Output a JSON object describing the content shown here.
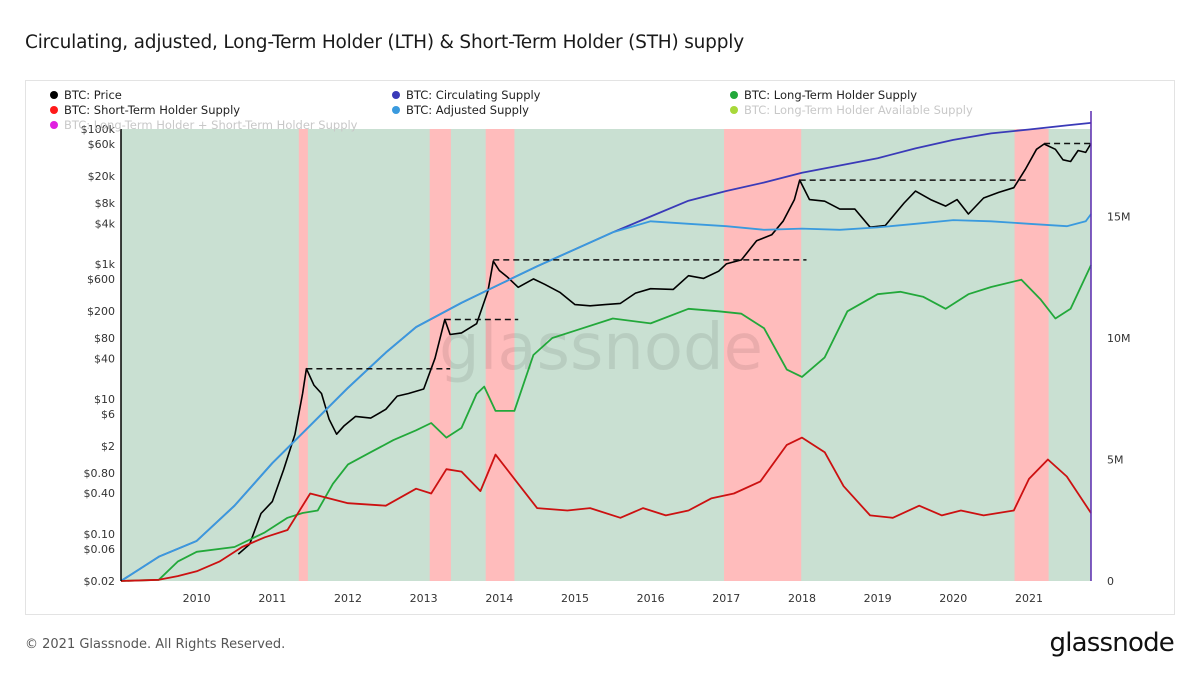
{
  "page": {
    "title": "Circulating, adjusted, Long-Term Holder (LTH) & Short-Term Holder (STH) supply",
    "copyright": "© 2021 Glassnode. All Rights Reserved.",
    "brand": "glassnode",
    "watermark": "glassnode"
  },
  "chart_data": {
    "type": "line",
    "title": "Circulating, adjusted, Long-Term Holder (LTH) & Short-Term Holder (STH) supply",
    "x_range": [
      2009.0,
      2021.82
    ],
    "x_ticks": [
      2010,
      2011,
      2012,
      2013,
      2014,
      2015,
      2016,
      2017,
      2018,
      2019,
      2020,
      2021
    ],
    "x_tick_labels": [
      "2010",
      "2011",
      "2012",
      "2013",
      "2014",
      "2015",
      "2016",
      "2017",
      "2018",
      "2019",
      "2020",
      "2021"
    ],
    "y_left": {
      "scale": "log",
      "range": [
        0.02,
        100000
      ],
      "ticks": [
        0.02,
        0.06,
        0.1,
        0.4,
        0.8,
        2,
        6,
        10,
        40,
        80,
        200,
        600,
        1000,
        4000,
        8000,
        20000,
        60000,
        100000
      ],
      "tick_labels": [
        "$0.02",
        "$0.06",
        "$0.10",
        "$0.40",
        "$0.80",
        "$2",
        "$6",
        "$10",
        "$40",
        "$80",
        "$200",
        "$600",
        "$1k",
        "$4k",
        "$8k",
        "$20k",
        "$60k",
        "$100k"
      ]
    },
    "y_right": {
      "scale": "linear",
      "range": [
        0,
        18600000
      ],
      "ticks": [
        0,
        5000000,
        10000000,
        15000000
      ],
      "tick_labels": [
        "0",
        "5M",
        "10M",
        "15M"
      ]
    },
    "legend": [
      {
        "label": "BTC: Price",
        "color": "#000000"
      },
      {
        "label": "BTC: Short-Term Holder Supply",
        "color": "#ff1a1a"
      },
      {
        "label": "BTC: Long-Term Holder + Short-Term Holder Supply",
        "color": "#e020e0"
      },
      {
        "label": "BTC: Circulating Supply",
        "color": "#3a3ab8"
      },
      {
        "label": "BTC: Adjusted Supply",
        "color": "#3a9ade"
      },
      {
        "label": "BTC: Long-Term Holder Supply",
        "color": "#22a83a"
      },
      {
        "label": "BTC: Long-Term Holder Available Supply",
        "color": "#a8d83a"
      }
    ],
    "legend_placement": "top-left",
    "background_regions": {
      "default_color": "#c9e0d2",
      "highlight_color": "#ffbcbc",
      "highlight_ranges": [
        [
          2011.35,
          2011.47
        ],
        [
          2013.08,
          2013.36
        ],
        [
          2013.82,
          2014.2
        ],
        [
          2016.97,
          2017.99
        ],
        [
          2020.81,
          2021.26
        ]
      ]
    },
    "series": [
      {
        "name": "BTC: Price",
        "axis": "left",
        "color": "#000000",
        "points": [
          [
            2010.55,
            0.05
          ],
          [
            2010.7,
            0.07
          ],
          [
            2010.85,
            0.2
          ],
          [
            2011.0,
            0.3
          ],
          [
            2011.15,
            0.9
          ],
          [
            2011.3,
            3.0
          ],
          [
            2011.4,
            12
          ],
          [
            2011.45,
            28
          ],
          [
            2011.55,
            16
          ],
          [
            2011.65,
            12
          ],
          [
            2011.75,
            5
          ],
          [
            2011.85,
            3
          ],
          [
            2011.95,
            4
          ],
          [
            2012.1,
            5.5
          ],
          [
            2012.3,
            5.2
          ],
          [
            2012.5,
            7
          ],
          [
            2012.65,
            11
          ],
          [
            2012.8,
            12
          ],
          [
            2013.0,
            14
          ],
          [
            2013.15,
            40
          ],
          [
            2013.28,
            150
          ],
          [
            2013.35,
            90
          ],
          [
            2013.5,
            95
          ],
          [
            2013.7,
            130
          ],
          [
            2013.85,
            400
          ],
          [
            2013.92,
            1100
          ],
          [
            2014.0,
            800
          ],
          [
            2014.1,
            650
          ],
          [
            2014.25,
            450
          ],
          [
            2014.45,
            600
          ],
          [
            2014.6,
            500
          ],
          [
            2014.8,
            380
          ],
          [
            2015.0,
            250
          ],
          [
            2015.2,
            240
          ],
          [
            2015.4,
            250
          ],
          [
            2015.6,
            260
          ],
          [
            2015.8,
            370
          ],
          [
            2016.0,
            430
          ],
          [
            2016.3,
            420
          ],
          [
            2016.5,
            670
          ],
          [
            2016.7,
            610
          ],
          [
            2016.9,
            780
          ],
          [
            2017.0,
            1000
          ],
          [
            2017.2,
            1150
          ],
          [
            2017.4,
            2200
          ],
          [
            2017.6,
            2700
          ],
          [
            2017.75,
            4300
          ],
          [
            2017.9,
            9000
          ],
          [
            2017.97,
            17500
          ],
          [
            2018.1,
            9000
          ],
          [
            2018.3,
            8500
          ],
          [
            2018.5,
            6500
          ],
          [
            2018.7,
            6500
          ],
          [
            2018.9,
            3500
          ],
          [
            2019.1,
            3700
          ],
          [
            2019.35,
            8000
          ],
          [
            2019.5,
            12000
          ],
          [
            2019.7,
            9000
          ],
          [
            2019.9,
            7200
          ],
          [
            2020.05,
            9000
          ],
          [
            2020.2,
            5500
          ],
          [
            2020.4,
            9500
          ],
          [
            2020.6,
            11500
          ],
          [
            2020.8,
            13500
          ],
          [
            2020.95,
            25000
          ],
          [
            2021.1,
            50000
          ],
          [
            2021.2,
            60000
          ],
          [
            2021.35,
            50000
          ],
          [
            2021.45,
            35000
          ],
          [
            2021.55,
            33000
          ],
          [
            2021.65,
            48000
          ],
          [
            2021.75,
            45000
          ],
          [
            2021.82,
            61000
          ]
        ]
      },
      {
        "name": "BTC: Circulating Supply",
        "axis": "right",
        "color": "#3a3ab8",
        "points": [
          [
            2009.0,
            0
          ],
          [
            2009.5,
            1000000
          ],
          [
            2010.0,
            1650000
          ],
          [
            2010.5,
            3100000
          ],
          [
            2011.0,
            4850000
          ],
          [
            2011.5,
            6400000
          ],
          [
            2012.0,
            7950000
          ],
          [
            2012.5,
            9400000
          ],
          [
            2012.9,
            10450000
          ],
          [
            2013.5,
            11450000
          ],
          [
            2014.0,
            12200000
          ],
          [
            2014.5,
            12950000
          ],
          [
            2015.0,
            13650000
          ],
          [
            2015.5,
            14350000
          ],
          [
            2016.0,
            15000000
          ],
          [
            2016.5,
            15650000
          ],
          [
            2017.0,
            16050000
          ],
          [
            2017.5,
            16400000
          ],
          [
            2018.0,
            16800000
          ],
          [
            2018.5,
            17100000
          ],
          [
            2019.0,
            17400000
          ],
          [
            2019.5,
            17800000
          ],
          [
            2020.0,
            18150000
          ],
          [
            2020.5,
            18420000
          ],
          [
            2021.0,
            18580000
          ],
          [
            2021.5,
            18750000
          ],
          [
            2021.82,
            18850000
          ]
        ]
      },
      {
        "name": "BTC: Adjusted Supply",
        "axis": "right",
        "color": "#3a9ade",
        "points": [
          [
            2009.0,
            0
          ],
          [
            2009.5,
            1000000
          ],
          [
            2010.0,
            1650000
          ],
          [
            2010.5,
            3100000
          ],
          [
            2011.0,
            4850000
          ],
          [
            2011.5,
            6400000
          ],
          [
            2012.0,
            7950000
          ],
          [
            2012.5,
            9400000
          ],
          [
            2012.9,
            10450000
          ],
          [
            2013.5,
            11450000
          ],
          [
            2014.0,
            12200000
          ],
          [
            2014.5,
            12950000
          ],
          [
            2015.0,
            13650000
          ],
          [
            2015.5,
            14350000
          ],
          [
            2016.0,
            14800000
          ],
          [
            2016.5,
            14700000
          ],
          [
            2017.0,
            14600000
          ],
          [
            2017.5,
            14450000
          ],
          [
            2018.0,
            14500000
          ],
          [
            2018.5,
            14450000
          ],
          [
            2019.0,
            14550000
          ],
          [
            2019.5,
            14700000
          ],
          [
            2020.0,
            14850000
          ],
          [
            2020.5,
            14800000
          ],
          [
            2021.0,
            14700000
          ],
          [
            2021.5,
            14600000
          ],
          [
            2021.75,
            14800000
          ],
          [
            2021.82,
            15100000
          ]
        ]
      },
      {
        "name": "BTC: Long-Term Holder Supply",
        "axis": "right",
        "color": "#22a83a",
        "points": [
          [
            2009.0,
            0
          ],
          [
            2009.5,
            50000
          ],
          [
            2009.75,
            800000
          ],
          [
            2010.0,
            1200000
          ],
          [
            2010.5,
            1400000
          ],
          [
            2010.9,
            2000000
          ],
          [
            2011.2,
            2600000
          ],
          [
            2011.4,
            2800000
          ],
          [
            2011.6,
            2900000
          ],
          [
            2011.8,
            4000000
          ],
          [
            2012.0,
            4800000
          ],
          [
            2012.3,
            5300000
          ],
          [
            2012.6,
            5800000
          ],
          [
            2012.9,
            6200000
          ],
          [
            2013.1,
            6500000
          ],
          [
            2013.3,
            5900000
          ],
          [
            2013.5,
            6300000
          ],
          [
            2013.7,
            7700000
          ],
          [
            2013.8,
            8000000
          ],
          [
            2013.95,
            7000000
          ],
          [
            2014.2,
            7000000
          ],
          [
            2014.45,
            9300000
          ],
          [
            2014.7,
            10000000
          ],
          [
            2015.0,
            10300000
          ],
          [
            2015.5,
            10800000
          ],
          [
            2016.0,
            10600000
          ],
          [
            2016.5,
            11200000
          ],
          [
            2016.9,
            11100000
          ],
          [
            2017.2,
            11000000
          ],
          [
            2017.5,
            10400000
          ],
          [
            2017.8,
            8700000
          ],
          [
            2018.0,
            8400000
          ],
          [
            2018.3,
            9200000
          ],
          [
            2018.6,
            11100000
          ],
          [
            2019.0,
            11800000
          ],
          [
            2019.3,
            11900000
          ],
          [
            2019.6,
            11700000
          ],
          [
            2019.9,
            11200000
          ],
          [
            2020.2,
            11800000
          ],
          [
            2020.5,
            12100000
          ],
          [
            2020.9,
            12400000
          ],
          [
            2021.15,
            11600000
          ],
          [
            2021.35,
            10800000
          ],
          [
            2021.55,
            11200000
          ],
          [
            2021.82,
            13000000
          ]
        ]
      },
      {
        "name": "BTC: Short-Term Holder Supply",
        "axis": "right",
        "color": "#cc1111",
        "points": [
          [
            2009.0,
            0
          ],
          [
            2009.5,
            50000
          ],
          [
            2009.75,
            200000
          ],
          [
            2010.0,
            400000
          ],
          [
            2010.3,
            800000
          ],
          [
            2010.6,
            1400000
          ],
          [
            2010.9,
            1800000
          ],
          [
            2011.2,
            2100000
          ],
          [
            2011.5,
            3600000
          ],
          [
            2011.75,
            3400000
          ],
          [
            2012.0,
            3200000
          ],
          [
            2012.5,
            3100000
          ],
          [
            2012.9,
            3800000
          ],
          [
            2013.1,
            3600000
          ],
          [
            2013.3,
            4600000
          ],
          [
            2013.5,
            4500000
          ],
          [
            2013.75,
            3700000
          ],
          [
            2013.95,
            5200000
          ],
          [
            2014.25,
            4000000
          ],
          [
            2014.5,
            3000000
          ],
          [
            2014.9,
            2900000
          ],
          [
            2015.2,
            3000000
          ],
          [
            2015.6,
            2600000
          ],
          [
            2015.9,
            3000000
          ],
          [
            2016.2,
            2700000
          ],
          [
            2016.5,
            2900000
          ],
          [
            2016.8,
            3400000
          ],
          [
            2017.1,
            3600000
          ],
          [
            2017.45,
            4100000
          ],
          [
            2017.8,
            5600000
          ],
          [
            2018.0,
            5900000
          ],
          [
            2018.3,
            5300000
          ],
          [
            2018.55,
            3900000
          ],
          [
            2018.9,
            2700000
          ],
          [
            2019.2,
            2600000
          ],
          [
            2019.55,
            3100000
          ],
          [
            2019.85,
            2700000
          ],
          [
            2020.1,
            2900000
          ],
          [
            2020.4,
            2700000
          ],
          [
            2020.8,
            2900000
          ],
          [
            2021.0,
            4200000
          ],
          [
            2021.25,
            5000000
          ],
          [
            2021.5,
            4300000
          ],
          [
            2021.82,
            2800000
          ]
        ]
      }
    ],
    "ath_lines": [
      {
        "x0": 2011.45,
        "x1": 2013.35,
        "y": 28
      },
      {
        "x0": 2013.28,
        "x1": 2014.25,
        "y": 150
      },
      {
        "x0": 2013.92,
        "x1": 2018.06,
        "y": 1150
      },
      {
        "x0": 2017.97,
        "x1": 2020.98,
        "y": 17500
      },
      {
        "x0": 2021.2,
        "x1": 2021.82,
        "y": 61000
      }
    ],
    "grid": false
  }
}
